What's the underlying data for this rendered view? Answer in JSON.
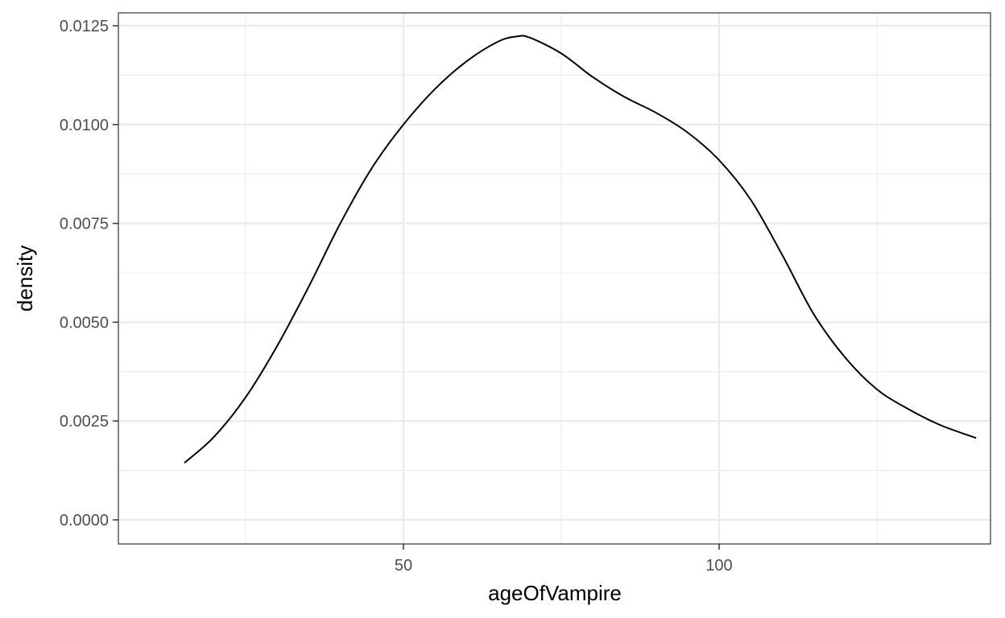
{
  "chart_data": {
    "type": "line",
    "title": "",
    "xlabel": "ageOfVampire",
    "ylabel": "density",
    "xlim": [
      9,
      138
    ],
    "ylim": [
      -0.0005,
      0.0128
    ],
    "x_ticks": [
      50,
      100
    ],
    "x_tick_labels": [
      "50",
      "100"
    ],
    "x_minor_ticks": [
      25,
      75,
      125
    ],
    "y_ticks": [
      0,
      0.0025,
      0.005,
      0.0075,
      0.01,
      0.0125
    ],
    "y_tick_labels": [
      "0.0000",
      "0.0025",
      "0.0050",
      "0.0075",
      "0.0100",
      "0.0125"
    ],
    "y_minor_ticks": [
      0.00125,
      0.00375,
      0.00625,
      0.00875,
      0.01125
    ],
    "grid": true,
    "legend": "none",
    "line_color": "#000000",
    "grid_color": "#ebebeb",
    "series": [
      {
        "x": [
          15.3,
          20,
          25,
          30,
          35,
          40,
          45,
          50,
          55,
          60,
          65,
          68,
          70,
          75,
          80,
          85,
          90,
          95,
          100,
          105,
          110,
          115,
          120,
          125,
          130,
          135,
          140.7
        ],
        "y": [
          0.00144,
          0.0021,
          0.0031,
          0.0044,
          0.0059,
          0.0075,
          0.0089,
          0.01,
          0.0109,
          0.0116,
          0.0121,
          0.01223,
          0.0122,
          0.0118,
          0.0112,
          0.0107,
          0.0103,
          0.0098,
          0.0091,
          0.0081,
          0.0067,
          0.0052,
          0.0041,
          0.0033,
          0.0028,
          0.0024,
          0.00207
        ]
      }
    ]
  }
}
